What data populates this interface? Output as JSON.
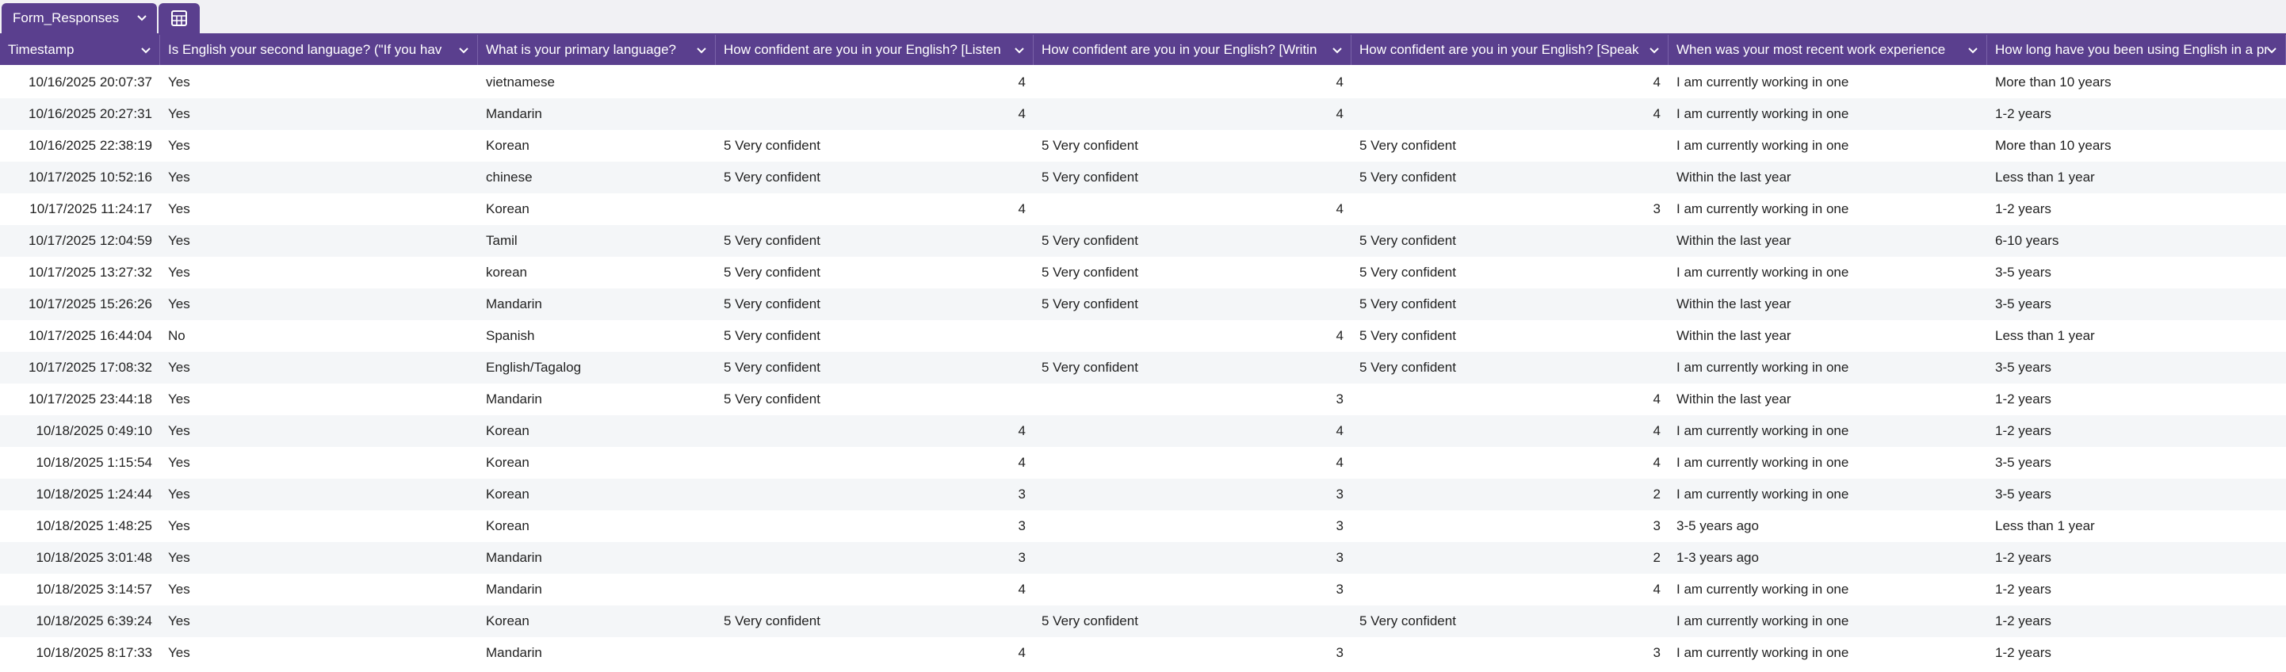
{
  "tab": {
    "name": "Form_Responses"
  },
  "table": {
    "columns": [
      "Timestamp",
      "Is English your second language? (\"If you hav",
      "What is your primary language?",
      "How confident are you in your English? [Listen",
      "How confident are you in your English? [Writin",
      "How confident are you in your English? [Speak",
      "When was your most recent work experience",
      "How long have you been using English in a pr"
    ],
    "rows": [
      [
        "10/16/2025 20:07:37",
        "Yes",
        "vietnamese",
        4,
        4,
        4,
        "I am currently working in one",
        "More than 10 years"
      ],
      [
        "10/16/2025 20:27:31",
        "Yes",
        "Mandarin",
        4,
        4,
        4,
        "I am currently working in one",
        "1-2 years"
      ],
      [
        "10/16/2025 22:38:19",
        "Yes",
        "Korean",
        "5 Very confident",
        "5 Very confident",
        "5 Very confident",
        "I am currently working in one",
        "More than 10 years"
      ],
      [
        "10/17/2025 10:52:16",
        "Yes",
        "chinese",
        "5 Very confident",
        "5 Very confident",
        "5 Very confident",
        "Within the last year",
        "Less than 1 year"
      ],
      [
        "10/17/2025 11:24:17",
        "Yes",
        "Korean",
        4,
        4,
        3,
        "I am currently working in one",
        "1-2 years"
      ],
      [
        "10/17/2025 12:04:59",
        "Yes",
        "Tamil",
        "5 Very confident",
        "5 Very confident",
        "5 Very confident",
        "Within the last year",
        "6-10 years"
      ],
      [
        "10/17/2025 13:27:32",
        "Yes",
        "korean",
        "5 Very confident",
        "5 Very confident",
        "5 Very confident",
        "I am currently working in one",
        "3-5 years"
      ],
      [
        "10/17/2025 15:26:26",
        "Yes",
        "Mandarin",
        "5 Very confident",
        "5 Very confident",
        "5 Very confident",
        "Within the last year",
        "3-5 years"
      ],
      [
        "10/17/2025 16:44:04",
        "No",
        "Spanish",
        "5 Very confident",
        4,
        "5 Very confident",
        "Within the last year",
        "Less than 1 year"
      ],
      [
        "10/17/2025 17:08:32",
        "Yes",
        "English/Tagalog",
        "5 Very confident",
        "5 Very confident",
        "5 Very confident",
        "I am currently working in one",
        "3-5 years"
      ],
      [
        "10/17/2025 23:44:18",
        "Yes",
        "Mandarin",
        "5 Very confident",
        3,
        4,
        "Within the last year",
        "1-2 years"
      ],
      [
        "10/18/2025 0:49:10",
        "Yes",
        "Korean",
        4,
        4,
        4,
        "I am currently working in one",
        "1-2 years"
      ],
      [
        "10/18/2025 1:15:54",
        "Yes",
        "Korean",
        4,
        4,
        4,
        "I am currently working in one",
        "3-5 years"
      ],
      [
        "10/18/2025 1:24:44",
        "Yes",
        "Korean",
        3,
        3,
        2,
        "I am currently working in one",
        "3-5 years"
      ],
      [
        "10/18/2025 1:48:25",
        "Yes",
        "Korean",
        3,
        3,
        3,
        "3-5 years ago",
        "Less than 1 year"
      ],
      [
        "10/18/2025 3:01:48",
        "Yes",
        "Mandarin",
        3,
        3,
        2,
        "1-3 years ago",
        "1-2 years"
      ],
      [
        "10/18/2025 3:14:57",
        "Yes",
        "Mandarin",
        4,
        3,
        4,
        "I am currently working in one",
        "1-2 years"
      ],
      [
        "10/18/2025 6:39:24",
        "Yes",
        "Korean",
        "5 Very confident",
        "5 Very confident",
        "5 Very confident",
        "I am currently working in one",
        "1-2 years"
      ],
      [
        "10/18/2025 8:17:33",
        "Yes",
        "Mandarin",
        4,
        3,
        3,
        "I am currently working in one",
        "1-2 years"
      ]
    ]
  }
}
